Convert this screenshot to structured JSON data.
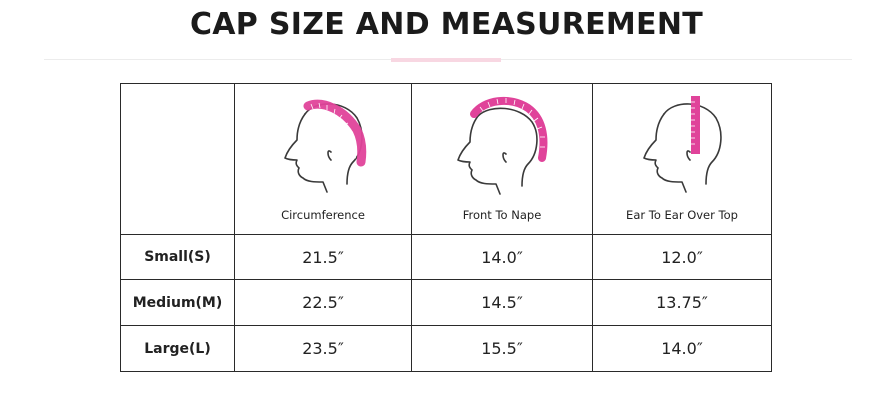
{
  "page": {
    "title": "CAP SIZE AND MEASUREMENT",
    "accent_color": "#f3b9cd"
  },
  "table": {
    "columns": [
      {
        "label": "Circumference",
        "icon": "head-circumference-icon"
      },
      {
        "label": "Front To Nape",
        "icon": "head-front-to-nape-icon"
      },
      {
        "label": "Ear To Ear Over Top",
        "icon": "head-ear-to-ear-icon"
      }
    ],
    "rows": [
      {
        "size": "Small(S)",
        "values": [
          "21.5″",
          "14.0″",
          "12.0″"
        ]
      },
      {
        "size": "Medium(M)",
        "values": [
          "22.5″",
          "14.5″",
          "13.75″"
        ]
      },
      {
        "size": "Large(L)",
        "values": [
          "23.5″",
          "15.5″",
          "14.0″"
        ]
      }
    ],
    "tape_color": "#e0439a"
  }
}
